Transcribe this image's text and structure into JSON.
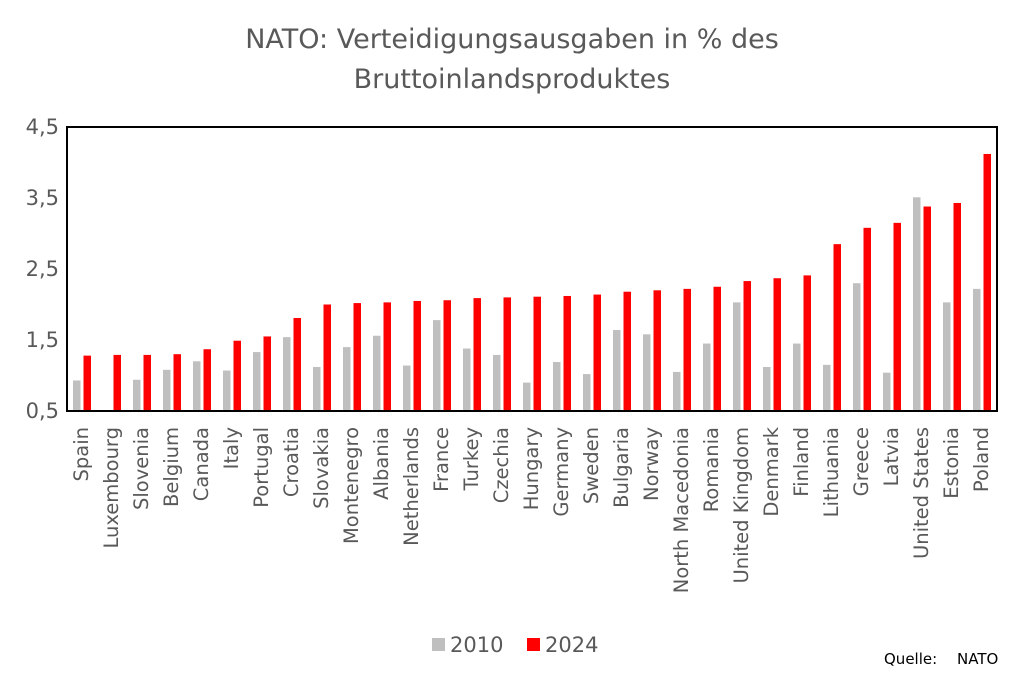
{
  "chart_data": {
    "type": "bar",
    "title_lines": [
      "NATO: Verteidigungsausgaben in % des",
      "Bruttoinlandsproduktes"
    ],
    "categories": [
      "Spain",
      "Luxembourg",
      "Slovenia",
      "Belgium",
      "Canada",
      "Italy",
      "Portugal",
      "Croatia",
      "Slovakia",
      "Montenegro",
      "Albania",
      "Netherlands",
      "France",
      "Turkey",
      "Czechia",
      "Hungary",
      "Germany",
      "Sweden",
      "Bulgaria",
      "Norway",
      "North Macedonia",
      "Romania",
      "United Kingdom",
      "Denmark",
      "Finland",
      "Lithuania",
      "Greece",
      "Latvia",
      "United States",
      "Estonia",
      "Poland"
    ],
    "series": [
      {
        "name": "2010",
        "color": "#bfbfbf",
        "values": [
          0.93,
          0.49,
          0.94,
          1.08,
          1.2,
          1.07,
          1.33,
          1.54,
          1.12,
          1.4,
          1.56,
          1.14,
          1.78,
          1.38,
          1.29,
          0.9,
          1.19,
          1.02,
          1.64,
          1.58,
          1.05,
          1.45,
          2.03,
          1.12,
          1.45,
          1.15,
          2.3,
          1.04,
          3.51,
          2.03,
          2.22
        ]
      },
      {
        "name": "2024",
        "color": "#ff0000",
        "values": [
          1.28,
          1.29,
          1.29,
          1.3,
          1.37,
          1.49,
          1.55,
          1.81,
          2.0,
          2.02,
          2.03,
          2.05,
          2.06,
          2.09,
          2.1,
          2.11,
          2.12,
          2.14,
          2.18,
          2.2,
          2.22,
          2.25,
          2.33,
          2.37,
          2.41,
          2.85,
          3.08,
          3.15,
          3.38,
          3.43,
          4.12
        ]
      }
    ],
    "y_ticks": [
      "0,5",
      "1,5",
      "2,5",
      "3,5",
      "4,5"
    ],
    "y_tick_values": [
      0.5,
      1.5,
      2.5,
      3.5,
      4.5
    ],
    "ylim": [
      0.5,
      4.5
    ],
    "grid": false,
    "legend": "bottom-center",
    "xlabel": "",
    "ylabel": ""
  },
  "source_label": "Quelle:",
  "source_value": "NATO"
}
